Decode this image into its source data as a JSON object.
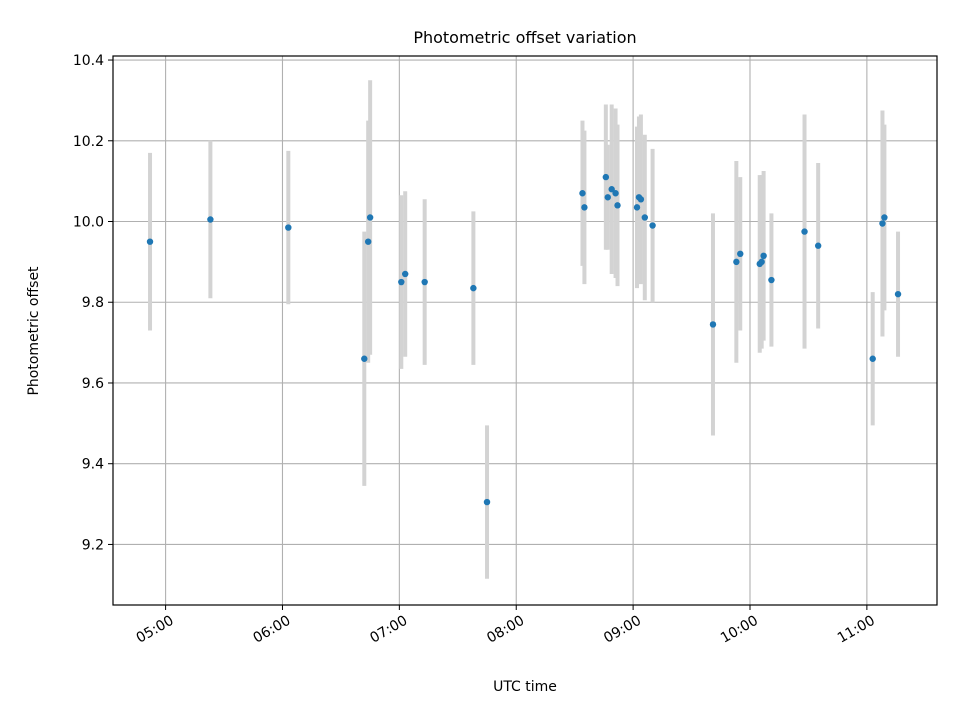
{
  "chart_data": {
    "type": "scatter",
    "title": "Photometric offset variation",
    "xlabel": "UTC time",
    "ylabel": "Photometric offset",
    "x_unit": "UTC time of day",
    "xlim": [
      "04:33",
      "11:36"
    ],
    "ylim": [
      9.05,
      10.41
    ],
    "x_ticks": [
      "05:00",
      "06:00",
      "07:00",
      "08:00",
      "09:00",
      "10:00",
      "11:00"
    ],
    "y_ticks": [
      9.2,
      9.4,
      9.6,
      9.8,
      10.0,
      10.2,
      10.4
    ],
    "y_tick_labels": [
      "9.2",
      "9.4",
      "9.6",
      "9.8",
      "10.0",
      "10.2",
      "10.4"
    ],
    "grid": true,
    "marker_color": "#1f77b4",
    "errorbar_color": "#d3d3d3",
    "points": [
      {
        "x": "04:52",
        "y": 9.95,
        "err": 0.22
      },
      {
        "x": "05:23",
        "y": 10.005,
        "err": 0.195
      },
      {
        "x": "06:03",
        "y": 9.985,
        "err": 0.19
      },
      {
        "x": "06:42",
        "y": 9.66,
        "err": 0.315
      },
      {
        "x": "06:44",
        "y": 9.95,
        "err": 0.3
      },
      {
        "x": "06:45",
        "y": 10.01,
        "err": 0.34
      },
      {
        "x": "07:01",
        "y": 9.85,
        "err": 0.215
      },
      {
        "x": "07:03",
        "y": 9.87,
        "err": 0.205
      },
      {
        "x": "07:13",
        "y": 9.85,
        "err": 0.205
      },
      {
        "x": "07:38",
        "y": 9.835,
        "err": 0.19
      },
      {
        "x": "07:45",
        "y": 9.305,
        "err": 0.19
      },
      {
        "x": "08:34",
        "y": 10.07,
        "err": 0.18
      },
      {
        "x": "08:35",
        "y": 10.035,
        "err": 0.19
      },
      {
        "x": "08:46",
        "y": 10.11,
        "err": 0.18
      },
      {
        "x": "08:47",
        "y": 10.06,
        "err": 0.13
      },
      {
        "x": "08:49",
        "y": 10.08,
        "err": 0.21
      },
      {
        "x": "08:51",
        "y": 10.07,
        "err": 0.21
      },
      {
        "x": "08:52",
        "y": 10.04,
        "err": 0.2
      },
      {
        "x": "09:02",
        "y": 10.035,
        "err": 0.2
      },
      {
        "x": "09:03",
        "y": 10.06,
        "err": 0.2
      },
      {
        "x": "09:04",
        "y": 10.055,
        "err": 0.21
      },
      {
        "x": "09:06",
        "y": 10.01,
        "err": 0.205
      },
      {
        "x": "09:10",
        "y": 9.99,
        "err": 0.19
      },
      {
        "x": "09:41",
        "y": 9.745,
        "err": 0.275
      },
      {
        "x": "09:53",
        "y": 9.9,
        "err": 0.25
      },
      {
        "x": "09:55",
        "y": 9.92,
        "err": 0.19
      },
      {
        "x": "10:05",
        "y": 9.895,
        "err": 0.22
      },
      {
        "x": "10:06",
        "y": 9.9,
        "err": 0.215
      },
      {
        "x": "10:07",
        "y": 9.915,
        "err": 0.21
      },
      {
        "x": "10:11",
        "y": 9.855,
        "err": 0.165
      },
      {
        "x": "10:28",
        "y": 9.975,
        "err": 0.29
      },
      {
        "x": "10:35",
        "y": 9.94,
        "err": 0.205
      },
      {
        "x": "11:03",
        "y": 9.66,
        "err": 0.165
      },
      {
        "x": "11:08",
        "y": 9.995,
        "err": 0.28
      },
      {
        "x": "11:09",
        "y": 10.01,
        "err": 0.23
      },
      {
        "x": "11:16",
        "y": 9.82,
        "err": 0.155
      }
    ]
  }
}
